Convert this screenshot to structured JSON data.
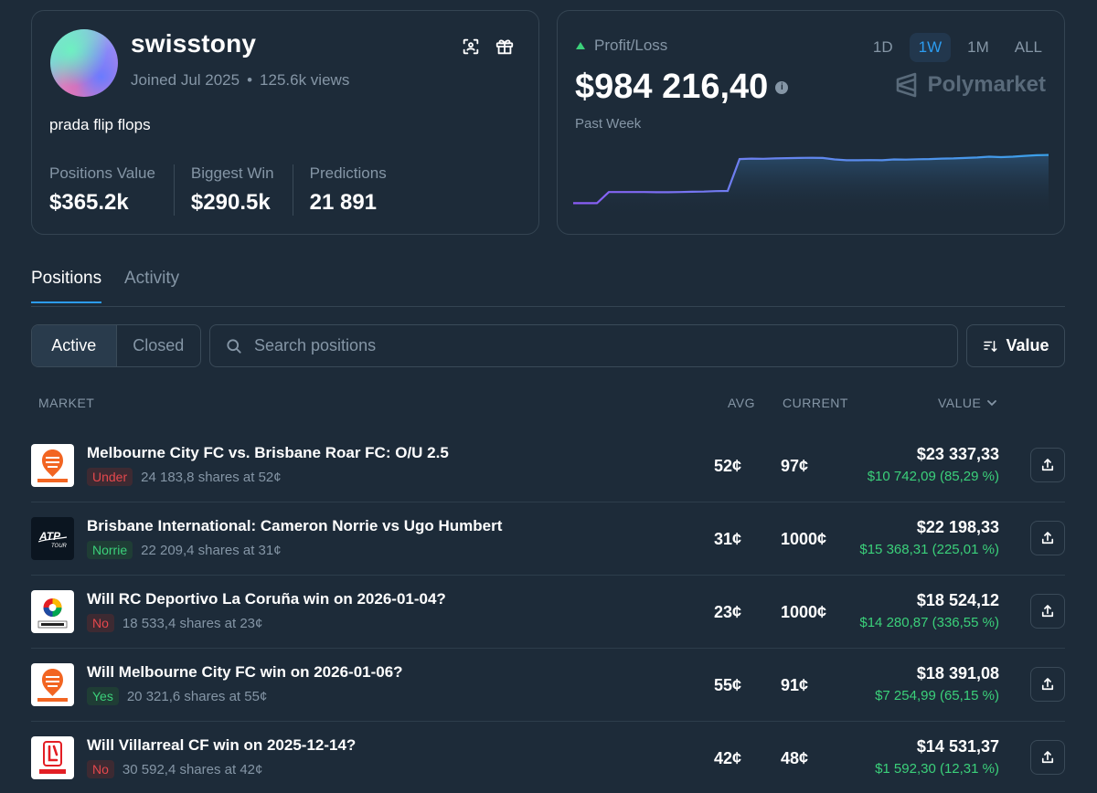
{
  "profile": {
    "username": "swisstony",
    "joined": "Joined Jul 2025",
    "dot": "•",
    "views": "125.6k views",
    "bio": "prada flip flops",
    "stats": [
      {
        "label": "Positions Value",
        "value": "$365.2k"
      },
      {
        "label": "Biggest Win",
        "value": "$290.5k"
      },
      {
        "label": "Predictions",
        "value": "21 891"
      }
    ]
  },
  "pnl": {
    "label": "Profit/Loss",
    "value": "$984 216,40",
    "info": "i",
    "period_label": "Past Week",
    "brand": "Polymarket",
    "ranges": [
      "1D",
      "1W",
      "1M",
      "ALL"
    ],
    "active_range": "1W",
    "accent": "#2c9cf0",
    "positive_color": "#3bd07a"
  },
  "chart_data": {
    "type": "line",
    "title": "Profit/Loss",
    "xlabel": "Past Week",
    "ylabel": "",
    "ylim": [
      700000,
      1000000
    ],
    "x": [
      0,
      1,
      2,
      3,
      4,
      5,
      6,
      7,
      8,
      9,
      10,
      11,
      12,
      13,
      14,
      15,
      16,
      17,
      18,
      19,
      20,
      21,
      22,
      23,
      24,
      25,
      26,
      27,
      28,
      29,
      30,
      31,
      32,
      33,
      34,
      35,
      36,
      37,
      38,
      39,
      40
    ],
    "series": [
      {
        "name": "Profit/Loss",
        "values": [
          755000,
          755000,
          755000,
          808000,
          808000,
          808000,
          808000,
          807000,
          807000,
          808000,
          809000,
          810000,
          812000,
          813000,
          965000,
          967000,
          966000,
          968000,
          969000,
          970000,
          971000,
          970000,
          963000,
          959000,
          959000,
          960000,
          959000,
          963000,
          962000,
          964000,
          965000,
          967000,
          968000,
          970000,
          972000,
          976000,
          974000,
          976000,
          980000,
          983000,
          984216
        ]
      }
    ]
  },
  "tabs": {
    "positions": "Positions",
    "activity": "Activity"
  },
  "filters": {
    "active": "Active",
    "closed": "Closed",
    "search_placeholder": "Search positions",
    "sort_label": "Value"
  },
  "table": {
    "headers": {
      "market": "MARKET",
      "avg": "AVG",
      "current": "CURRENT",
      "value": "VALUE"
    },
    "rows": [
      {
        "logo": "a-league-logo",
        "title": "Melbourne City FC vs. Brisbane Roar FC: O/U 2.5",
        "outcome": "Under",
        "outcome_type": "no",
        "shares": "24 183,8 shares at 52¢",
        "avg": "52¢",
        "current": "97¢",
        "value": "$23 337,33",
        "pnl": "$10 742,09 (85,29 %)"
      },
      {
        "logo": "atp-tour-logo",
        "title": "Brisbane International: Cameron Norrie vs Ugo Humbert",
        "outcome": "Norrie",
        "outcome_type": "yes",
        "shares": "22 209,4 shares at 31¢",
        "avg": "31¢",
        "current": "1000¢",
        "value": "$22 198,33",
        "pnl": "$15 368,31 (225,01 %)"
      },
      {
        "logo": "laliga-logo",
        "title": "Will RC Deportivo La Coruña win on 2026-01-04?",
        "outcome": "No",
        "outcome_type": "no",
        "shares": "18 533,4 shares at 23¢",
        "avg": "23¢",
        "current": "1000¢",
        "value": "$18 524,12",
        "pnl": "$14 280,87 (336,55 %)"
      },
      {
        "logo": "a-league-logo",
        "title": "Will Melbourne City FC win on 2026-01-06?",
        "outcome": "Yes",
        "outcome_type": "yes",
        "shares": "20 321,6 shares at 55¢",
        "avg": "55¢",
        "current": "91¢",
        "value": "$18 391,08",
        "pnl": "$7 254,99 (65,15 %)"
      },
      {
        "logo": "laliga-red-logo",
        "title": "Will Villarreal CF win on 2025-12-14?",
        "outcome": "No",
        "outcome_type": "no",
        "shares": "30 592,4 shares at 42¢",
        "avg": "42¢",
        "current": "48¢",
        "value": "$14 531,37",
        "pnl": "$1 592,30 (12,31 %)"
      }
    ]
  }
}
